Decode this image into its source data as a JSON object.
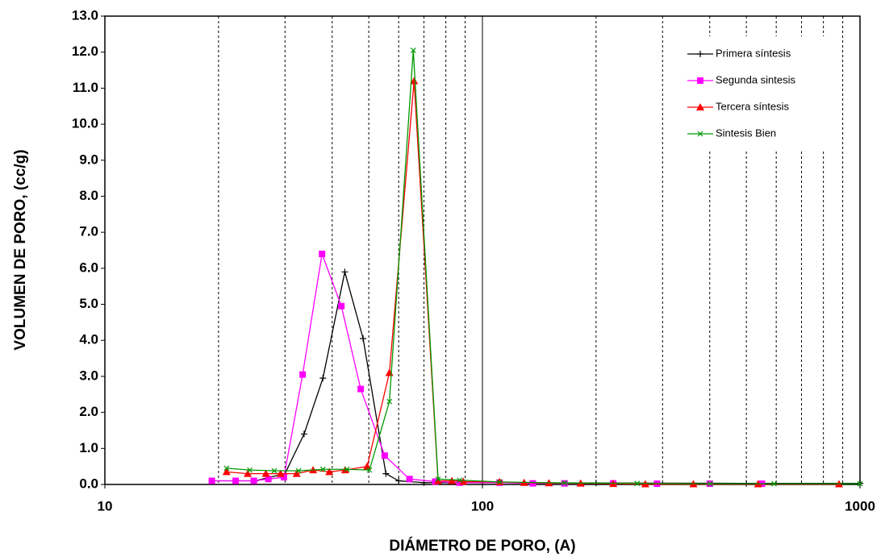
{
  "chart_data": {
    "type": "line",
    "x_label": "DIÁMETRO DE PORO, (A)",
    "y_label": "VOLUMEN DE PORO, (cc/g)",
    "x_log": true,
    "xlim": [
      10,
      1000
    ],
    "xticks": [
      10,
      100,
      1000
    ],
    "x_minor_grid": [
      20,
      30,
      40,
      50,
      60,
      70,
      80,
      90,
      200,
      300,
      400,
      500,
      600,
      700,
      800,
      900
    ],
    "ylim": [
      0,
      13
    ],
    "yticks": [
      {
        "value": 0,
        "label": "0.0"
      },
      {
        "value": 1,
        "label": "1.0"
      },
      {
        "value": 2,
        "label": "2.0"
      },
      {
        "value": 3,
        "label": "3.0"
      },
      {
        "value": 4,
        "label": "4.0"
      },
      {
        "value": 5,
        "label": "5.0"
      },
      {
        "value": 6,
        "label": "6.0"
      },
      {
        "value": 7,
        "label": "7.0"
      },
      {
        "value": 8,
        "label": "8.0"
      },
      {
        "value": 9,
        "label": "9.0"
      },
      {
        "value": 10,
        "label": "10.0"
      },
      {
        "value": 11,
        "label": "11.0"
      },
      {
        "value": 12,
        "label": "12.0"
      },
      {
        "value": 13,
        "label": "13.0"
      }
    ],
    "legend": "top-right",
    "series": [
      {
        "name": "Primera síntesis",
        "color": "#000000",
        "marker": "plus",
        "x": [
          19.2,
          25,
          30,
          33.7,
          37.8,
          43.2,
          48.3,
          55.5,
          60,
          70,
          100,
          200,
          500,
          1000
        ],
        "values": [
          0.1,
          0.1,
          0.3,
          1.4,
          2.95,
          5.9,
          4.05,
          0.3,
          0.1,
          0.05,
          0.05,
          0.04,
          0.03,
          0.03
        ]
      },
      {
        "name": "Segunda sintesis",
        "color": "#ff00ff",
        "marker": "square",
        "x": [
          19.2,
          22.2,
          24.8,
          27.1,
          29.8,
          33.4,
          37.6,
          42.3,
          47.6,
          55.1,
          64.1,
          75,
          87,
          111,
          136,
          165,
          222,
          290,
          400,
          550
        ],
        "values": [
          0.1,
          0.1,
          0.1,
          0.15,
          0.2,
          3.05,
          6.4,
          4.95,
          2.65,
          0.8,
          0.15,
          0.08,
          0.05,
          0.05,
          0.03,
          0.03,
          0.03,
          0.02,
          0.02,
          0.02
        ]
      },
      {
        "name": "Tercera síntesis",
        "color": "#ff0000",
        "marker": "triangle",
        "x": [
          21,
          23.9,
          26.7,
          29.2,
          32.2,
          35.6,
          39.3,
          43.3,
          49.5,
          56.7,
          65.9,
          76.3,
          83,
          89,
          111,
          129,
          150,
          182,
          222,
          270,
          362,
          537,
          880
        ],
        "values": [
          0.35,
          0.3,
          0.3,
          0.3,
          0.3,
          0.4,
          0.35,
          0.4,
          0.5,
          3.1,
          11.2,
          0.1,
          0.1,
          0.08,
          0.07,
          0.05,
          0.04,
          0.03,
          0.02,
          0.01,
          0.01,
          0.01,
          0.01
        ]
      },
      {
        "name": "Sintesis Bien",
        "color": "#009900",
        "marker": "cross",
        "x": [
          21,
          24.2,
          28.1,
          32.6,
          37.8,
          43.8,
          50.2,
          56.7,
          65.6,
          76.3,
          87,
          111,
          165,
          257,
          401,
          592,
          1000
        ],
        "values": [
          0.45,
          0.4,
          0.38,
          0.38,
          0.42,
          0.42,
          0.4,
          2.3,
          12.05,
          0.15,
          0.12,
          0.07,
          0.04,
          0.03,
          0.02,
          0.02,
          0.02
        ]
      }
    ]
  }
}
